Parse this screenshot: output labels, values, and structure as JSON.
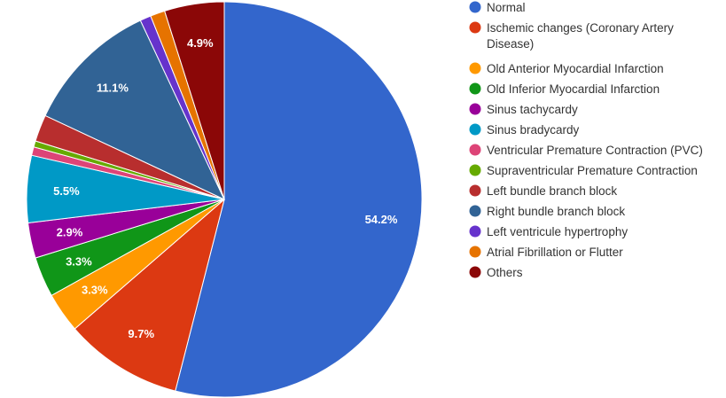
{
  "chart_data": {
    "type": "pie",
    "title": "",
    "legend_position": "right",
    "start_angle_deg": 0,
    "direction": "clockwise",
    "slices": [
      {
        "name": "Normal",
        "value": 54.2,
        "label": "54.2%",
        "color": "#3366cc"
      },
      {
        "name": "Ischemic changes (Coronary Artery Disease)",
        "value": 9.7,
        "label": "9.7%",
        "color": "#dc3912"
      },
      {
        "name": "Old Anterior Myocardial Infarction",
        "value": 3.3,
        "label": "3.3%",
        "color": "#ff9900"
      },
      {
        "name": "Old Inferior Myocardial Infarction",
        "value": 3.3,
        "label": "3.3%",
        "color": "#109618"
      },
      {
        "name": "Sinus tachycardy",
        "value": 2.9,
        "label": "2.9%",
        "color": "#990099"
      },
      {
        "name": "Sinus bradycardy",
        "value": 5.5,
        "label": "5.5%",
        "color": "#0099c6"
      },
      {
        "name": "Ventricular Premature Contraction (PVC)",
        "value": 0.7,
        "label": "",
        "color": "#dd4477"
      },
      {
        "name": "Supraventricular Premature Contraction",
        "value": 0.5,
        "label": "",
        "color": "#66aa00"
      },
      {
        "name": "Left bundle branch block",
        "value": 2.2,
        "label": "",
        "color": "#b82e2e"
      },
      {
        "name": "Right bundle branch block",
        "value": 11.1,
        "label": "11.1%",
        "color": "#316395"
      },
      {
        "name": "Left ventricule hypertrophy",
        "value": 0.9,
        "label": "",
        "color": "#6633cc"
      },
      {
        "name": "Atrial Fibrillation or Flutter",
        "value": 1.2,
        "label": "",
        "color": "#e67300"
      },
      {
        "name": "Others",
        "value": 4.9,
        "label": "4.9%",
        "color": "#8b0707"
      }
    ],
    "legend": [
      {
        "lines": [
          "Normal"
        ]
      },
      {
        "lines": [
          "Ischemic changes (Coronary Artery",
          "Disease)"
        ]
      },
      {
        "lines": [
          "Old Anterior Myocardial Infarction"
        ]
      },
      {
        "lines": [
          "Old Inferior Myocardial Infarction"
        ]
      },
      {
        "lines": [
          "Sinus tachycardy"
        ]
      },
      {
        "lines": [
          "Sinus bradycardy"
        ]
      },
      {
        "lines": [
          "Ventricular Premature Contraction (PVC)"
        ]
      },
      {
        "lines": [
          "Supraventricular Premature Contraction"
        ]
      },
      {
        "lines": [
          "Left bundle branch block"
        ]
      },
      {
        "lines": [
          "Right bundle branch block"
        ]
      },
      {
        "lines": [
          "Left ventricule hypertrophy"
        ]
      },
      {
        "lines": [
          "Atrial Fibrillation or Flutter"
        ]
      },
      {
        "lines": [
          "Others"
        ]
      }
    ]
  }
}
